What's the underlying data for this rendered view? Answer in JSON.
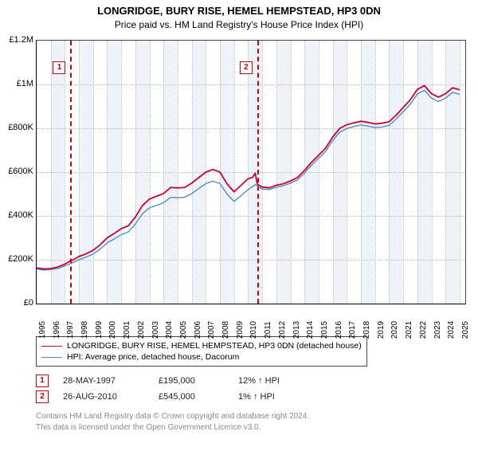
{
  "title": "LONGRIDGE, BURY RISE, HEMEL HEMPSTEAD, HP3 0DN",
  "subtitle": "Price paid vs. HM Land Registry's House Price Index (HPI)",
  "chart": {
    "type": "line",
    "background_color": "#ffffff",
    "band_color": "#eef3f9",
    "grid_color": "#bbbbbb",
    "x_years": [
      1995,
      1996,
      1997,
      1998,
      1999,
      2000,
      2001,
      2002,
      2003,
      2004,
      2005,
      2006,
      2007,
      2008,
      2009,
      2010,
      2011,
      2012,
      2013,
      2014,
      2015,
      2016,
      2017,
      2018,
      2019,
      2020,
      2021,
      2022,
      2023,
      2024,
      2025
    ],
    "xlim": [
      1995,
      2025.4
    ],
    "ylim": [
      0,
      1200000
    ],
    "ytick_step": 200000,
    "ytick_labels": [
      "£0",
      "£200K",
      "£400K",
      "£600K",
      "£800K",
      "£1M",
      "£1.2M"
    ],
    "marker_color": "#cc0000",
    "markers": [
      {
        "num": "1",
        "x": 1997.4,
        "box_y": 1080000
      },
      {
        "num": "2",
        "x": 2010.65,
        "box_y": 1080000
      }
    ],
    "series": [
      {
        "name": "LONGRIDGE, BURY RISE, HEMEL HEMPSTEAD, HP3 0DN (detached house)",
        "color": "#cc0033",
        "width": 1.8,
        "points_after_sale_only": false,
        "data": [
          [
            1995.0,
            163000
          ],
          [
            1995.5,
            158000
          ],
          [
            1996.0,
            160000
          ],
          [
            1996.5,
            167000
          ],
          [
            1997.0,
            180000
          ],
          [
            1997.4,
            195000
          ],
          [
            1997.6,
            200000
          ],
          [
            1998.0,
            215000
          ],
          [
            1998.5,
            227000
          ],
          [
            1999.0,
            243000
          ],
          [
            1999.5,
            268000
          ],
          [
            2000.0,
            300000
          ],
          [
            2000.5,
            320000
          ],
          [
            2001.0,
            342000
          ],
          [
            2001.5,
            355000
          ],
          [
            2002.0,
            395000
          ],
          [
            2002.5,
            447000
          ],
          [
            2003.0,
            477000
          ],
          [
            2003.5,
            490000
          ],
          [
            2004.0,
            502000
          ],
          [
            2004.5,
            530000
          ],
          [
            2005.0,
            528000
          ],
          [
            2005.5,
            530000
          ],
          [
            2006.0,
            550000
          ],
          [
            2006.5,
            575000
          ],
          [
            2007.0,
            600000
          ],
          [
            2007.5,
            612000
          ],
          [
            2008.0,
            600000
          ],
          [
            2008.5,
            547000
          ],
          [
            2009.0,
            510000
          ],
          [
            2009.5,
            540000
          ],
          [
            2010.0,
            570000
          ],
          [
            2010.3,
            575000
          ],
          [
            2010.5,
            595000
          ],
          [
            2010.65,
            545000
          ],
          [
            2011.0,
            532000
          ],
          [
            2011.5,
            528000
          ],
          [
            2012.0,
            540000
          ],
          [
            2012.5,
            547000
          ],
          [
            2013.0,
            560000
          ],
          [
            2013.5,
            575000
          ],
          [
            2014.0,
            608000
          ],
          [
            2014.5,
            645000
          ],
          [
            2015.0,
            677000
          ],
          [
            2015.5,
            710000
          ],
          [
            2016.0,
            760000
          ],
          [
            2016.5,
            800000
          ],
          [
            2017.0,
            816000
          ],
          [
            2017.5,
            825000
          ],
          [
            2018.0,
            832000
          ],
          [
            2018.5,
            827000
          ],
          [
            2019.0,
            820000
          ],
          [
            2019.5,
            823000
          ],
          [
            2020.0,
            830000
          ],
          [
            2020.5,
            860000
          ],
          [
            2021.0,
            895000
          ],
          [
            2021.5,
            930000
          ],
          [
            2022.0,
            977000
          ],
          [
            2022.5,
            995000
          ],
          [
            2023.0,
            958000
          ],
          [
            2023.5,
            942000
          ],
          [
            2024.0,
            958000
          ],
          [
            2024.5,
            985000
          ],
          [
            2025.0,
            976000
          ]
        ]
      },
      {
        "name": "HPI: Average price, detached house, Dacorum",
        "color": "#4a82c3",
        "width": 1.3,
        "data": [
          [
            1995.0,
            158000
          ],
          [
            1995.5,
            153000
          ],
          [
            1996.0,
            155000
          ],
          [
            1996.5,
            160000
          ],
          [
            1997.0,
            172000
          ],
          [
            1997.5,
            185000
          ],
          [
            1998.0,
            200000
          ],
          [
            1998.5,
            212000
          ],
          [
            1999.0,
            226000
          ],
          [
            1999.5,
            248000
          ],
          [
            2000.0,
            277000
          ],
          [
            2000.5,
            295000
          ],
          [
            2001.0,
            315000
          ],
          [
            2001.5,
            327000
          ],
          [
            2002.0,
            363000
          ],
          [
            2002.5,
            410000
          ],
          [
            2003.0,
            437000
          ],
          [
            2003.5,
            448000
          ],
          [
            2004.0,
            460000
          ],
          [
            2004.5,
            485000
          ],
          [
            2005.0,
            483000
          ],
          [
            2005.5,
            485000
          ],
          [
            2006.0,
            502000
          ],
          [
            2006.5,
            525000
          ],
          [
            2007.0,
            548000
          ],
          [
            2007.5,
            558000
          ],
          [
            2008.0,
            548000
          ],
          [
            2008.5,
            500000
          ],
          [
            2009.0,
            466000
          ],
          [
            2009.5,
            493000
          ],
          [
            2010.0,
            520000
          ],
          [
            2010.5,
            543000
          ],
          [
            2011.0,
            523000
          ],
          [
            2011.5,
            520000
          ],
          [
            2012.0,
            531000
          ],
          [
            2012.5,
            538000
          ],
          [
            2013.0,
            550000
          ],
          [
            2013.5,
            564000
          ],
          [
            2014.0,
            596000
          ],
          [
            2014.5,
            632000
          ],
          [
            2015.0,
            663000
          ],
          [
            2015.5,
            695000
          ],
          [
            2016.0,
            744000
          ],
          [
            2016.5,
            783000
          ],
          [
            2017.0,
            799000
          ],
          [
            2017.5,
            808000
          ],
          [
            2018.0,
            815000
          ],
          [
            2018.5,
            810000
          ],
          [
            2019.0,
            803000
          ],
          [
            2019.5,
            806000
          ],
          [
            2020.0,
            813000
          ],
          [
            2020.5,
            842000
          ],
          [
            2021.0,
            876000
          ],
          [
            2021.5,
            910000
          ],
          [
            2022.0,
            956000
          ],
          [
            2022.5,
            974000
          ],
          [
            2023.0,
            938000
          ],
          [
            2023.5,
            922000
          ],
          [
            2024.0,
            938000
          ],
          [
            2024.5,
            964000
          ],
          [
            2025.0,
            955000
          ]
        ]
      }
    ]
  },
  "legend": {
    "items": [
      {
        "label": "LONGRIDGE, BURY RISE, HEMEL HEMPSTEAD, HP3 0DN (detached house)",
        "color": "#cc0033",
        "width": 1.8
      },
      {
        "label": "HPI: Average price, detached house, Dacorum",
        "color": "#4a82c3",
        "width": 1.3
      }
    ]
  },
  "sales": [
    {
      "num": "1",
      "date": "28-MAY-1997",
      "price": "£195,000",
      "delta": "12% ↑ HPI"
    },
    {
      "num": "2",
      "date": "26-AUG-2010",
      "price": "£545,000",
      "delta": "1% ↑ HPI"
    }
  ],
  "footer": {
    "line1": "Contains HM Land Registry data © Crown copyright and database right 2024.",
    "line2": "This data is licensed under the Open Government Licence v3.0."
  }
}
